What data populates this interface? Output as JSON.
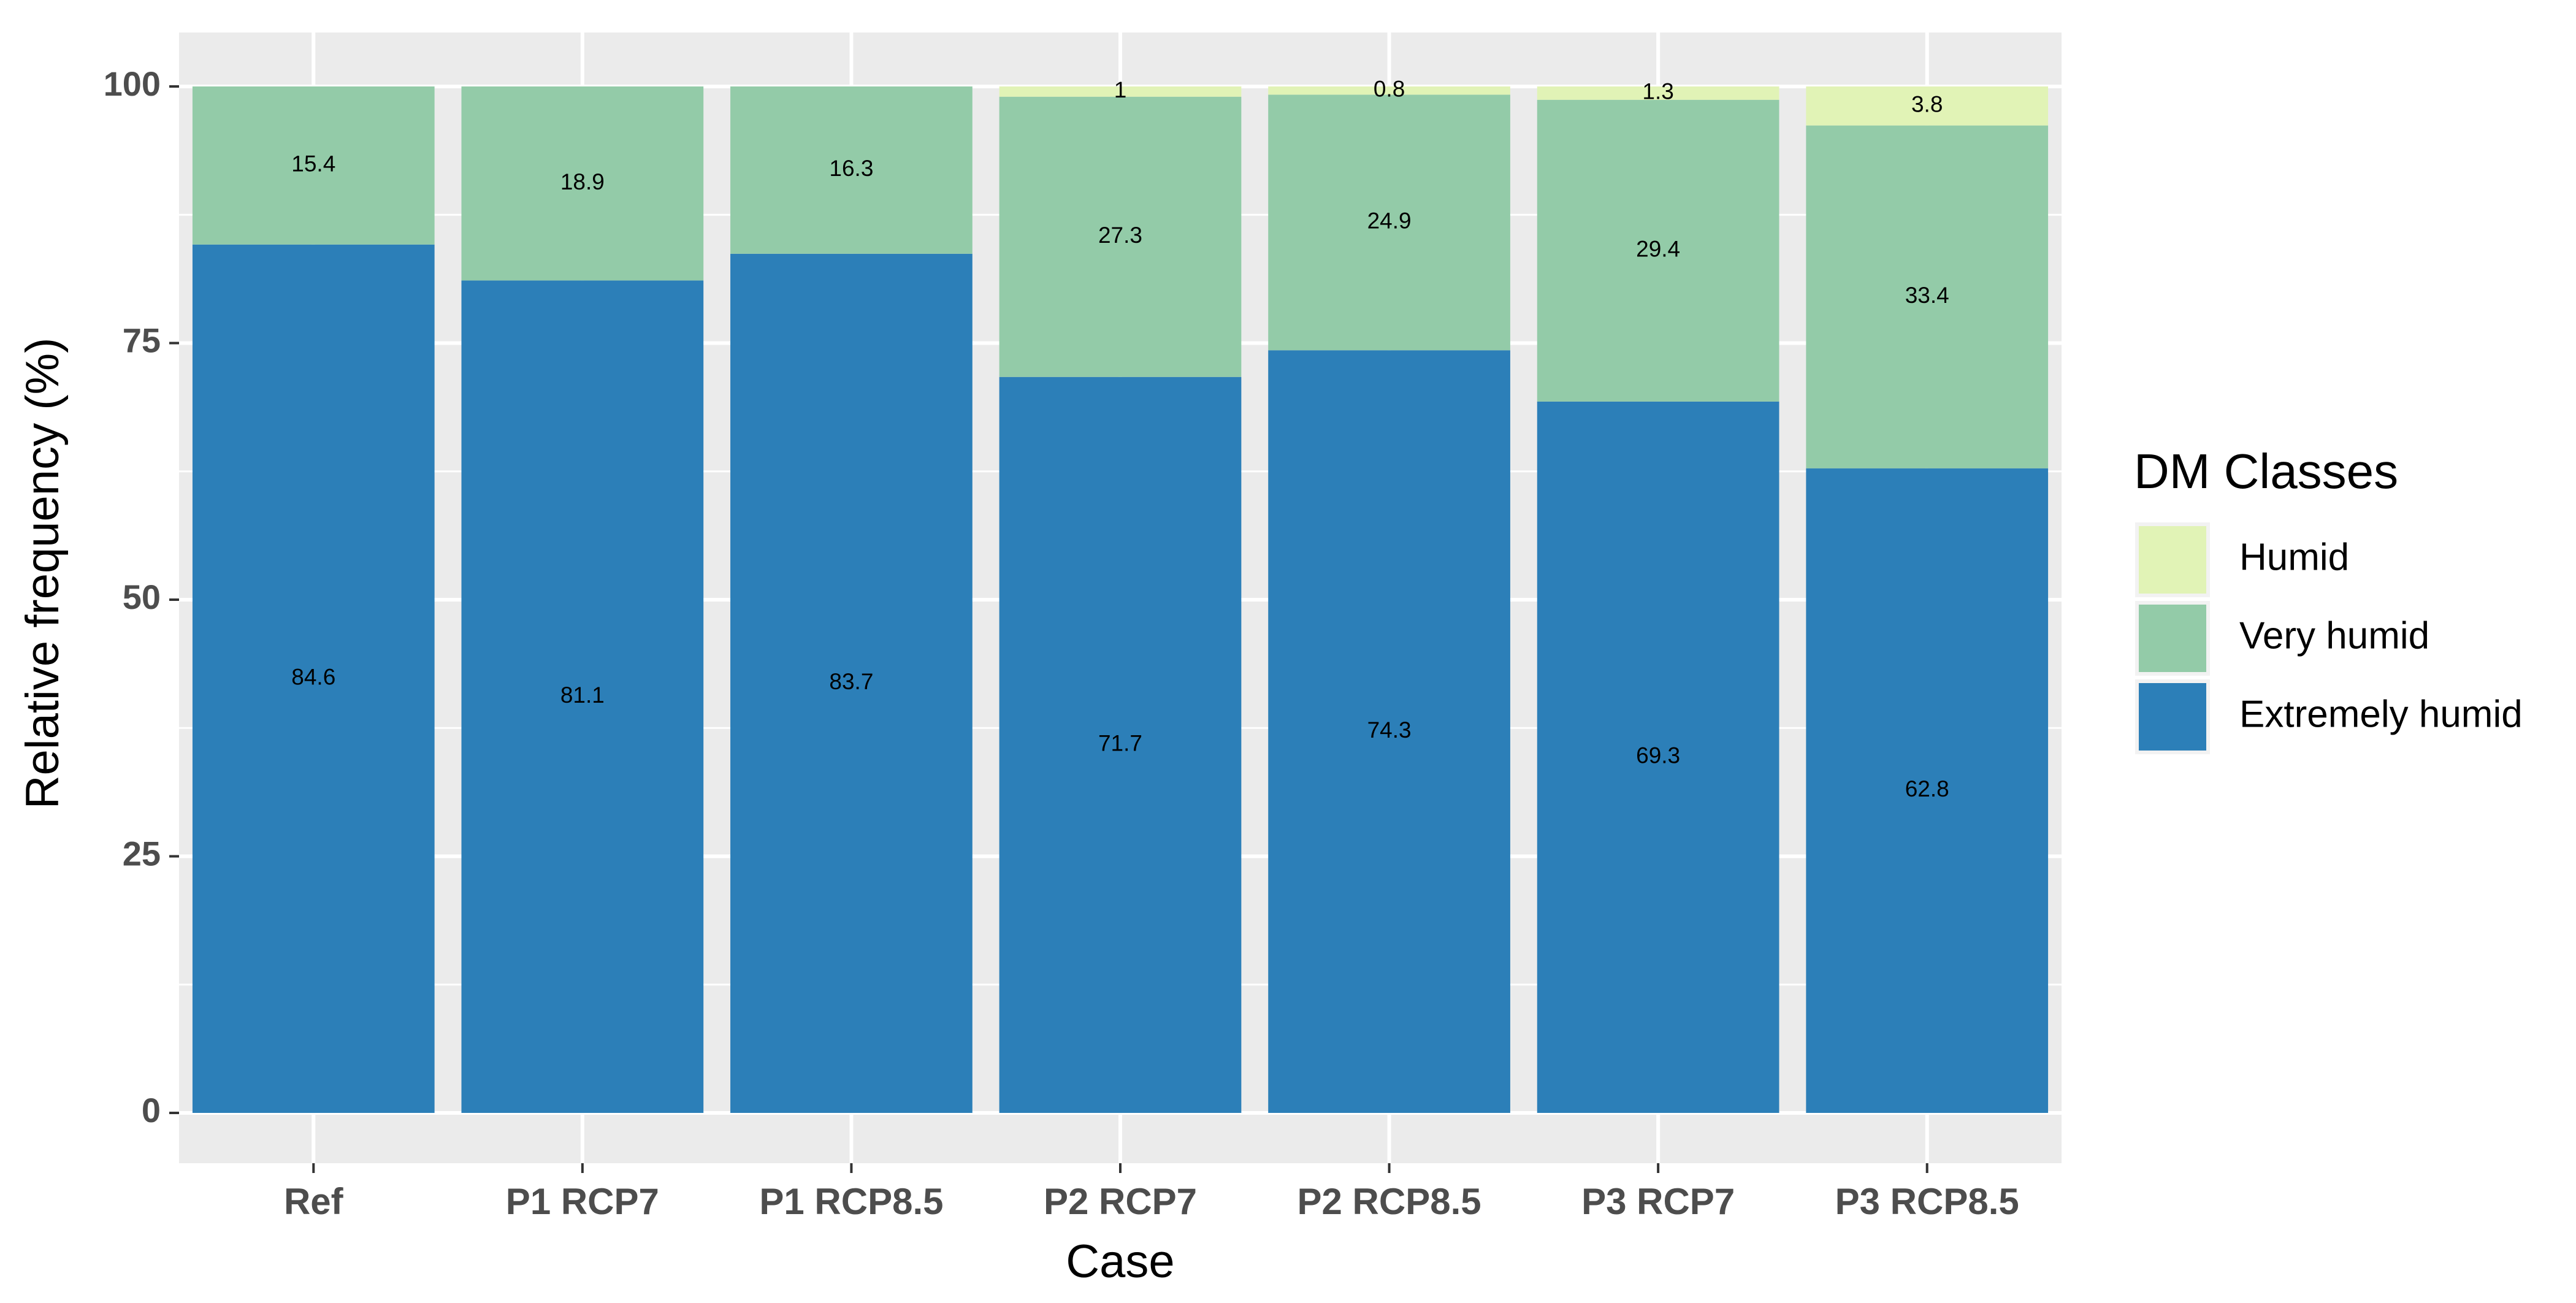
{
  "chart_data": {
    "type": "bar",
    "stacked": true,
    "title": "",
    "xlabel": "Case",
    "ylabel": "Relative frequency (%)",
    "ylim": [
      0,
      100
    ],
    "yticks": [
      0,
      25,
      50,
      75,
      100
    ],
    "grid": true,
    "categories": [
      "Ref",
      "P1 RCP7",
      "P1 RCP8.5",
      "P2 RCP7",
      "P2 RCP8.5",
      "P3 RCP7",
      "P3 RCP8.5"
    ],
    "series": [
      {
        "name": "Extremely humid",
        "color": "#2C7FB8",
        "values": [
          84.6,
          81.1,
          83.7,
          71.7,
          74.3,
          69.3,
          62.8
        ],
        "labels": [
          "84.6",
          "81.1",
          "83.7",
          "71.7",
          "74.3",
          "69.3",
          "62.8"
        ]
      },
      {
        "name": "Very humid",
        "color": "#93CBA8",
        "values": [
          15.4,
          18.9,
          16.3,
          27.3,
          24.9,
          29.4,
          33.4
        ],
        "labels": [
          "15.4",
          "18.9",
          "16.3",
          "27.3",
          "24.9",
          "29.4",
          "33.4"
        ]
      },
      {
        "name": "Humid",
        "color": "#E1F3B6",
        "values": [
          0,
          0,
          0,
          1,
          0.8,
          1.3,
          3.8
        ],
        "labels": [
          "",
          "",
          "",
          "1",
          "0.8",
          "1.3",
          "3.8"
        ]
      }
    ],
    "legend": {
      "title": "DM Classes",
      "position": "right",
      "entries": [
        "Humid",
        "Very humid",
        "Extremely humid"
      ]
    }
  }
}
